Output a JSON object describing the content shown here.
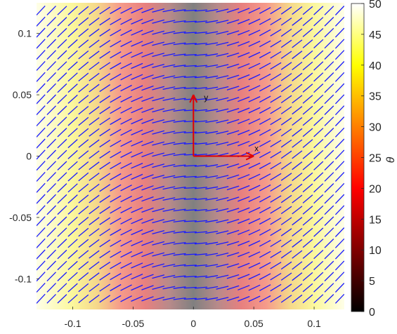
{
  "chart_data": {
    "type": "heatmap",
    "title": "",
    "xlabel": "",
    "ylabel": "",
    "xlim": [
      -0.13,
      0.125
    ],
    "ylim": [
      -0.125,
      0.125
    ],
    "x_ticks": [
      -0.1,
      -0.05,
      0,
      0.05,
      0.1
    ],
    "x_tick_labels": [
      "-0.1",
      "-0.05",
      "0",
      "0.05",
      "0.1"
    ],
    "y_ticks": [
      0.1,
      0.05,
      0,
      -0.05,
      -0.1
    ],
    "y_tick_labels": [
      "0.1",
      "0.05",
      "0",
      "-0.05",
      "-0.1"
    ],
    "field": {
      "description_var": "theta",
      "depends_on": "x",
      "x": [
        -0.13,
        -0.1,
        -0.08,
        -0.06,
        -0.04,
        -0.02,
        0,
        0.02,
        0.04,
        0.06,
        0.08,
        0.1,
        0.125
      ],
      "theta": [
        50,
        44,
        38,
        30,
        22,
        12,
        3,
        12,
        22,
        30,
        38,
        44,
        50
      ]
    },
    "colorbar": {
      "label": "θ",
      "range": [
        0,
        50
      ],
      "ticks": [
        0,
        5,
        10,
        15,
        20,
        25,
        30,
        35,
        40,
        45,
        50
      ],
      "tick_labels": [
        "0",
        "5",
        "10",
        "15",
        "20",
        "25",
        "30",
        "35",
        "40",
        "45",
        "50"
      ],
      "colormap": "hot"
    },
    "director_field": {
      "color": "#1a1aff",
      "orientation": "segments tilted by theta; near-horizontal at x=0, ~45 degrees at edges"
    },
    "axes_annotation": {
      "origin": [
        0,
        0
      ],
      "color": "#e00000",
      "x_label": "x",
      "y_label": "y"
    },
    "grid": false,
    "legend": "none"
  }
}
